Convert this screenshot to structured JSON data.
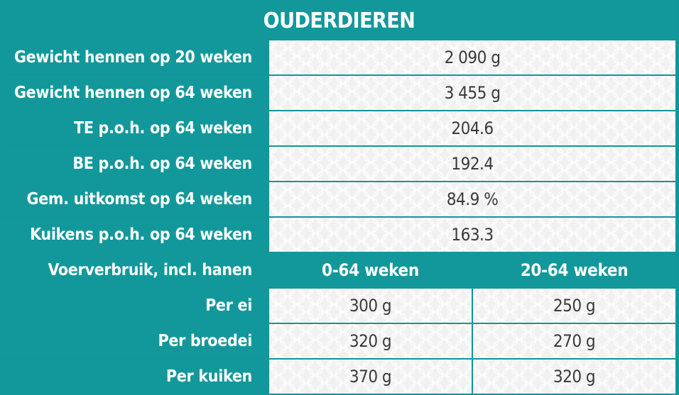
{
  "title": "OUDERDIEREN",
  "rows": [
    {
      "label": "Gewicht hennen op 20 weken",
      "value": "2 090 g"
    },
    {
      "label": "Gewicht hennen op 64 weken",
      "value": "3 455 g"
    },
    {
      "label": "TE p.o.h. op 64 weken",
      "value": "204.6"
    },
    {
      "label": "BE p.o.h. op 64 weken",
      "value": "192.4"
    },
    {
      "label": "Gem. uitkomst op 64 weken",
      "value": "84.9 %"
    },
    {
      "label": "Kuikens p.o.h. op 64 weken",
      "value": "163.3"
    }
  ],
  "feed": {
    "header_label": "Voerverbruik, incl. hanen",
    "columns": [
      "0-64 weken",
      "20-64 weken"
    ],
    "rows": [
      {
        "label": "Per ei",
        "values": [
          "300 g",
          "250 g"
        ]
      },
      {
        "label": "Per broedei",
        "values": [
          "320 g",
          "270 g"
        ]
      },
      {
        "label": "Per kuiken",
        "values": [
          "370 g",
          "320 g"
        ]
      }
    ]
  }
}
